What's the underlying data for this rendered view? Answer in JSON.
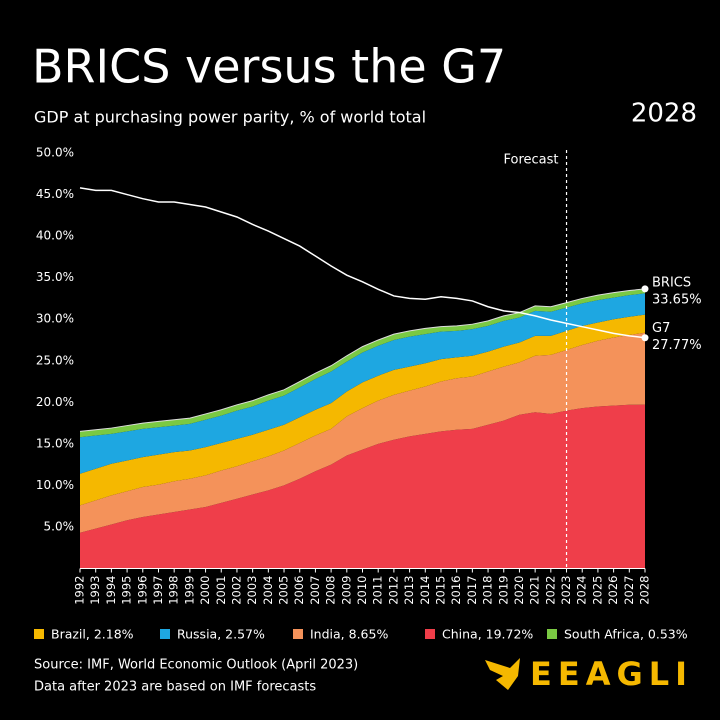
{
  "chart_data": {
    "type": "stacked-area",
    "title": "BRICS versus the G7",
    "subtitle": "GDP at purchasing power parity, % of world total",
    "year_badge": "2028",
    "categories": [
      "1992",
      "1993",
      "1994",
      "1995",
      "1996",
      "1997",
      "1998",
      "1999",
      "2000",
      "2001",
      "2002",
      "2003",
      "2004",
      "2005",
      "2006",
      "2007",
      "2008",
      "2009",
      "2010",
      "2011",
      "2012",
      "2013",
      "2014",
      "2015",
      "2016",
      "2017",
      "2018",
      "2019",
      "2020",
      "2021",
      "2022",
      "2023",
      "2024",
      "2025",
      "2026",
      "2027",
      "2028"
    ],
    "series": [
      {
        "name": "Brazil, 2.18%",
        "color": "#f5b800",
        "values": [
          3.8,
          3.8,
          3.8,
          3.7,
          3.6,
          3.6,
          3.5,
          3.4,
          3.4,
          3.3,
          3.3,
          3.2,
          3.2,
          3.1,
          3.1,
          3.1,
          3.1,
          3.0,
          3.1,
          3.0,
          3.0,
          2.9,
          2.8,
          2.7,
          2.5,
          2.5,
          2.4,
          2.4,
          2.4,
          2.4,
          2.3,
          2.3,
          2.3,
          2.2,
          2.2,
          2.2,
          2.18
        ]
      },
      {
        "name": "Russia, 2.57%",
        "color": "#1ea7e1",
        "values": [
          4.4,
          4.0,
          3.6,
          3.5,
          3.4,
          3.3,
          3.2,
          3.2,
          3.3,
          3.3,
          3.4,
          3.4,
          3.5,
          3.5,
          3.6,
          3.7,
          3.8,
          3.6,
          3.6,
          3.6,
          3.6,
          3.6,
          3.5,
          3.3,
          3.2,
          3.2,
          3.1,
          3.1,
          3.0,
          3.0,
          2.9,
          2.8,
          2.7,
          2.7,
          2.6,
          2.6,
          2.57
        ]
      },
      {
        "name": "India, 8.65%",
        "color": "#f4925a",
        "values": [
          3.3,
          3.4,
          3.5,
          3.5,
          3.6,
          3.6,
          3.7,
          3.7,
          3.8,
          3.9,
          3.9,
          4.0,
          4.1,
          4.2,
          4.3,
          4.3,
          4.3,
          4.7,
          5.0,
          5.2,
          5.4,
          5.5,
          5.7,
          6.0,
          6.2,
          6.3,
          6.4,
          6.5,
          6.3,
          6.8,
          7.1,
          7.3,
          7.6,
          7.9,
          8.2,
          8.4,
          8.65
        ]
      },
      {
        "name": "China, 19.72%",
        "color": "#ef3e4a",
        "values": [
          4.3,
          4.8,
          5.3,
          5.8,
          6.2,
          6.5,
          6.8,
          7.1,
          7.4,
          7.9,
          8.4,
          8.9,
          9.4,
          10.0,
          10.8,
          11.7,
          12.5,
          13.6,
          14.3,
          15.0,
          15.5,
          15.9,
          16.2,
          16.5,
          16.7,
          16.8,
          17.3,
          17.8,
          18.5,
          18.8,
          18.6,
          19.0,
          19.3,
          19.5,
          19.6,
          19.7,
          19.72
        ]
      },
      {
        "name": "South Africa, 0.53%",
        "color": "#7ac943",
        "values": [
          0.7,
          0.7,
          0.7,
          0.7,
          0.7,
          0.7,
          0.7,
          0.7,
          0.7,
          0.7,
          0.7,
          0.7,
          0.7,
          0.7,
          0.7,
          0.7,
          0.7,
          0.7,
          0.7,
          0.7,
          0.7,
          0.7,
          0.7,
          0.6,
          0.6,
          0.6,
          0.6,
          0.6,
          0.6,
          0.6,
          0.6,
          0.6,
          0.6,
          0.6,
          0.6,
          0.55,
          0.53
        ]
      }
    ],
    "stack_order": [
      3,
      2,
      0,
      1,
      4
    ],
    "line": {
      "name": "G7",
      "color": "#ffffff",
      "end_label": "27.77%",
      "values": [
        45.8,
        45.5,
        45.5,
        45.0,
        44.5,
        44.1,
        44.1,
        43.8,
        43.5,
        42.9,
        42.3,
        41.4,
        40.6,
        39.7,
        38.8,
        37.6,
        36.4,
        35.3,
        34.5,
        33.6,
        32.8,
        32.5,
        32.4,
        32.7,
        32.5,
        32.2,
        31.5,
        31.0,
        30.8,
        30.4,
        29.9,
        29.5,
        29.1,
        28.7,
        28.3,
        28.0,
        27.77
      ]
    },
    "total_label": {
      "name": "BRICS",
      "value": 33.65,
      "value_label": "33.65%"
    },
    "forecast": {
      "label": "Forecast",
      "x": "2023"
    },
    "ylim": [
      0,
      50
    ],
    "yticks": [
      {
        "value": 5,
        "label": "5.0%"
      },
      {
        "value": 10,
        "label": "10.0%"
      },
      {
        "value": 15,
        "label": "15.0%"
      },
      {
        "value": 20,
        "label": "20.0%"
      },
      {
        "value": 25,
        "label": "25.0%"
      },
      {
        "value": 30,
        "label": "30.0%"
      },
      {
        "value": 35,
        "label": "35.0%"
      },
      {
        "value": 40,
        "label": "40.0%"
      },
      {
        "value": 45,
        "label": "45.0%"
      },
      {
        "value": 50,
        "label": "50.0%"
      }
    ],
    "grid": false,
    "source": [
      "Source: IMF, World Economic Outlook (April 2023)",
      "Data after 2023 are based on IMF forecasts"
    ],
    "brand": "EEAGLI"
  }
}
